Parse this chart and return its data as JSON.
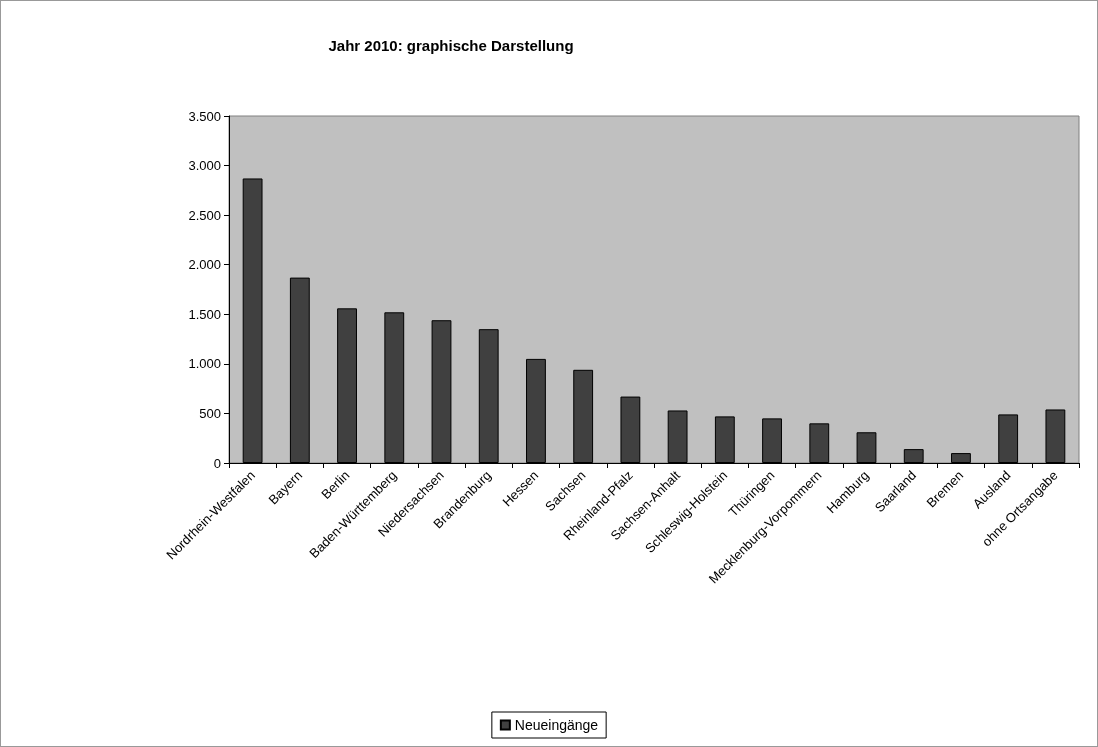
{
  "chart_data": {
    "type": "bar",
    "title": "Jahr 2010: graphische Darstellung",
    "categories": [
      "Nordrhein-Westfalen",
      "Bayern",
      "Berlin",
      "Baden-Württemberg",
      "Niedersachsen",
      "Brandenburg",
      "Hessen",
      "Sachsen",
      "Rheinland-Pfalz",
      "Sachsen-Anhalt",
      "Schleswig-Holstein",
      "Thüringen",
      "Mecklenburg-Vorpommern",
      "Hamburg",
      "Saarland",
      "Bremen",
      "Ausland",
      "ohne Ortsangabe"
    ],
    "series": [
      {
        "name": "Neueingänge",
        "color": "#404040",
        "values": [
          2870,
          1870,
          1560,
          1520,
          1440,
          1350,
          1050,
          940,
          670,
          530,
          470,
          450,
          400,
          310,
          140,
          100,
          490,
          540
        ]
      }
    ],
    "ylim": [
      0,
      3500
    ],
    "yticks": [
      0,
      {
        "value": 500,
        "label": "500"
      },
      {
        "value": 1000,
        "label": "1.000"
      },
      {
        "value": 1500,
        "label": "1.500"
      },
      {
        "value": 2000,
        "label": "2.000"
      },
      {
        "value": 2500,
        "label": "2.500"
      },
      {
        "value": 3000,
        "label": "3.000"
      },
      {
        "value": 3500,
        "label": "3.500"
      }
    ],
    "grid": false,
    "legend": "bottom"
  }
}
